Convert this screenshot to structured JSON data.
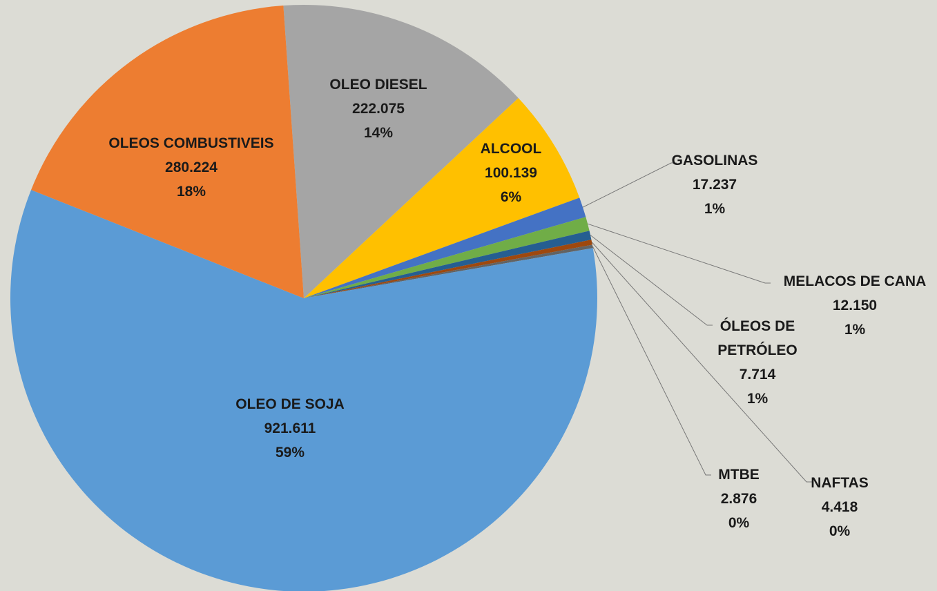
{
  "chart_data": {
    "type": "pie",
    "categories": [
      "OLEO DIESEL",
      "ALCOOL",
      "GASOLINAS",
      "MELACOS DE CANA",
      "ÓLEOS DE PETRÓLEO",
      "NAFTAS",
      "MTBE",
      "OLEO DE SOJA",
      "OLEOS COMBUSTIVEIS"
    ],
    "values": [
      222.075,
      100.139,
      17.237,
      12.15,
      7.714,
      4.418,
      2.876,
      921.611,
      280.224
    ],
    "value_labels": [
      "222.075",
      "100.139",
      "17.237",
      "12.150",
      "7.714",
      "4.418",
      "2.876",
      "921.611",
      "280.224"
    ],
    "percent_labels": [
      "14%",
      "6%",
      "1%",
      "1%",
      "1%",
      "0%",
      "0%",
      "59%",
      "18%"
    ],
    "colors": [
      "#a5a5a5",
      "#ffc000",
      "#4472c4",
      "#70ad47",
      "#255e91",
      "#9e480e",
      "#636363",
      "#5b9bd5",
      "#ed7d31"
    ]
  }
}
